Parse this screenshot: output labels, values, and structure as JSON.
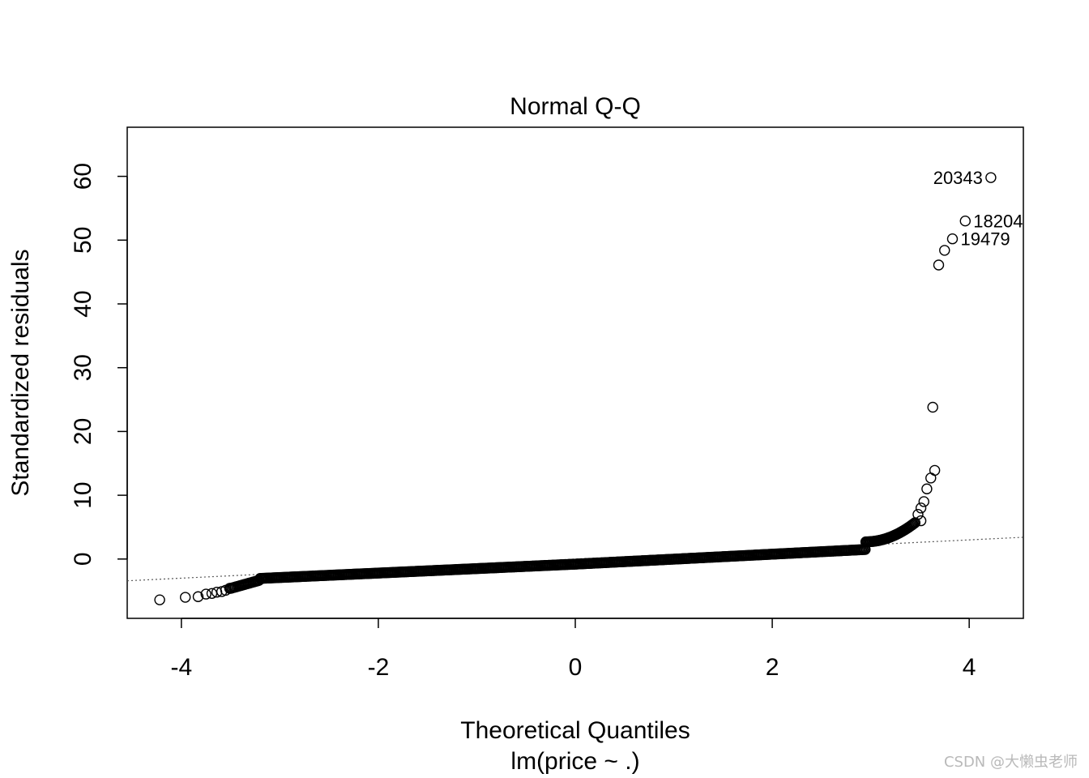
{
  "chart_data": {
    "type": "scatter",
    "title": "Normal Q-Q",
    "xlabel": "Theoretical Quantiles",
    "subtitle": "lm(price ~ .)",
    "ylabel": "Standardized residuals",
    "xlim": [
      -4.55,
      4.55
    ],
    "ylim": [
      -9.3,
      67.7
    ],
    "xticks": [
      -4,
      -2,
      0,
      2,
      4
    ],
    "yticks": [
      0,
      10,
      20,
      30,
      40,
      50,
      60
    ],
    "grid": false,
    "reference_line": {
      "style": "dotted",
      "slope": 0.75,
      "intercept": 0.0
    },
    "labeled_points": [
      {
        "label": "20343",
        "x": 4.22,
        "y": 59.8
      },
      {
        "label": "18204",
        "x": 3.96,
        "y": 53.0
      },
      {
        "label": "19479",
        "x": 3.83,
        "y": 50.2
      }
    ],
    "extreme_points": [
      {
        "x": -4.22,
        "y": -6.4
      },
      {
        "x": -3.96,
        "y": -6.0
      },
      {
        "x": -3.83,
        "y": -5.9
      },
      {
        "x": -3.75,
        "y": -5.5
      },
      {
        "x": -3.69,
        "y": -5.4
      },
      {
        "x": -3.64,
        "y": -5.2
      },
      {
        "x": -3.59,
        "y": -5.1
      },
      {
        "x": -3.55,
        "y": -4.9
      },
      {
        "x": -3.51,
        "y": -4.6
      },
      {
        "x": 3.51,
        "y": 6.0
      },
      {
        "x": 3.48,
        "y": 7.0
      },
      {
        "x": 3.51,
        "y": 8.0
      },
      {
        "x": 3.54,
        "y": 9.0
      },
      {
        "x": 3.57,
        "y": 11.0
      },
      {
        "x": 3.61,
        "y": 12.7
      },
      {
        "x": 3.65,
        "y": 13.9
      },
      {
        "x": 3.63,
        "y": 23.8
      },
      {
        "x": 3.69,
        "y": 46.1
      },
      {
        "x": 3.75,
        "y": 48.4
      },
      {
        "x": 3.83,
        "y": 50.2
      },
      {
        "x": 3.96,
        "y": 53.0
      },
      {
        "x": 4.22,
        "y": 59.8
      }
    ]
  },
  "watermark": "CSDN @大懒虫老师"
}
